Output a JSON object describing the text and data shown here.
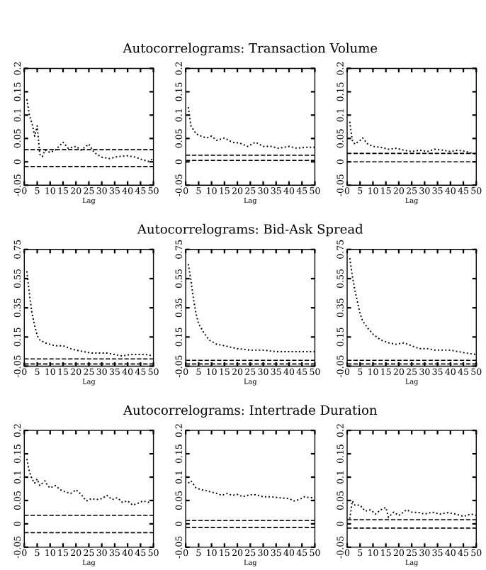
{
  "chart_data": [
    {
      "type": "line",
      "xlabel": "Lag",
      "xlim": [
        0,
        50
      ],
      "xticks": [
        0,
        5,
        10,
        15,
        20,
        25,
        30,
        35,
        40,
        45,
        50
      ],
      "ylim": [
        -0.05,
        0.2
      ],
      "yticks": [
        -0.05,
        0,
        0.05,
        0.1,
        0.15,
        0.2
      ],
      "line_style": "dotted",
      "grid": false,
      "series": [
        {
          "color": "#000000",
          "x": [
            1,
            2,
            3,
            4,
            5,
            6,
            7,
            8,
            10,
            12,
            15,
            17,
            20,
            22,
            25,
            27,
            30,
            33,
            36,
            40,
            43,
            46,
            48,
            50
          ],
          "values": [
            0.134,
            0.099,
            0.082,
            0.055,
            0.077,
            0.016,
            0.011,
            0.025,
            0.02,
            0.025,
            0.042,
            0.029,
            0.033,
            0.025,
            0.038,
            0.02,
            0.01,
            0.007,
            0.011,
            0.013,
            0.01,
            0.004,
            0.001,
            0.007
          ]
        }
      ],
      "ref_lines": [
        {
          "axis": "y",
          "value": 0.026,
          "line_style": "dashed",
          "color": "#000000"
        },
        {
          "axis": "y",
          "value": -0.01,
          "line_style": "dashed",
          "color": "#000000"
        }
      ]
    },
    {
      "type": "line",
      "title": "Autocorrelograms: Transaction Volume",
      "xlabel": "Lag",
      "xlim": [
        0,
        50
      ],
      "xticks": [
        0,
        5,
        10,
        15,
        20,
        25,
        30,
        35,
        40,
        45,
        50
      ],
      "ylim": [
        -0.05,
        0.2
      ],
      "yticks": [
        -0.05,
        0,
        0.05,
        0.1,
        0.15,
        0.2
      ],
      "line_style": "dotted",
      "grid": false,
      "legend": false,
      "series": [
        {
          "color": "#000000",
          "x": [
            1,
            2,
            4,
            6,
            8,
            10,
            12,
            15,
            18,
            21,
            24,
            27,
            30,
            33,
            36,
            40,
            43,
            46,
            50
          ],
          "values": [
            0.117,
            0.077,
            0.06,
            0.055,
            0.051,
            0.055,
            0.046,
            0.051,
            0.042,
            0.04,
            0.033,
            0.042,
            0.033,
            0.033,
            0.029,
            0.033,
            0.029,
            0.031,
            0.031
          ]
        }
      ],
      "ref_lines": [
        {
          "axis": "y",
          "value": 0.014,
          "line_style": "dashed",
          "color": "#000000"
        },
        {
          "axis": "y",
          "value": 0.003,
          "line_style": "dashed",
          "color": "#000000"
        }
      ]
    },
    {
      "type": "line",
      "xlabel": "Lag",
      "xlim": [
        0,
        50
      ],
      "xticks": [
        0,
        5,
        10,
        15,
        20,
        25,
        30,
        35,
        40,
        45,
        50
      ],
      "ylim": [
        -0.05,
        0.2
      ],
      "yticks": [
        -0.05,
        0,
        0.05,
        0.1,
        0.15,
        0.2
      ],
      "line_style": "dotted",
      "grid": false,
      "legend": false,
      "series": [
        {
          "color": "#000000",
          "x": [
            1,
            2,
            3,
            5,
            6,
            8,
            10,
            13,
            16,
            19,
            22,
            25,
            28,
            31,
            34,
            37,
            40,
            43,
            46,
            50
          ],
          "values": [
            0.086,
            0.046,
            0.038,
            0.046,
            0.051,
            0.038,
            0.033,
            0.031,
            0.027,
            0.029,
            0.025,
            0.022,
            0.025,
            0.022,
            0.027,
            0.025,
            0.022,
            0.025,
            0.022,
            0.016
          ]
        }
      ],
      "ref_lines": [
        {
          "axis": "y",
          "value": 0.018,
          "line_style": "dashed",
          "color": "#000000"
        },
        {
          "axis": "y",
          "value": 0.0,
          "line_style": "dashed",
          "color": "#000000"
        }
      ]
    },
    {
      "type": "line",
      "xlabel": "Lag",
      "xlim": [
        0,
        50
      ],
      "xticks": [
        0,
        5,
        10,
        15,
        20,
        25,
        30,
        35,
        40,
        45,
        50
      ],
      "ylim": [
        -0.05,
        0.75
      ],
      "yticks": [
        -0.05,
        0.15,
        0.35,
        0.55,
        0.75
      ],
      "line_style": "dotted",
      "grid": false,
      "legend": false,
      "series": [
        {
          "color": "#000000",
          "x": [
            1,
            2,
            3,
            4,
            5,
            6,
            8,
            10,
            12,
            15,
            18,
            20,
            23,
            26,
            29,
            32,
            35,
            38,
            41,
            44,
            47,
            50
          ],
          "values": [
            0.6,
            0.44,
            0.31,
            0.23,
            0.16,
            0.13,
            0.11,
            0.1,
            0.09,
            0.09,
            0.07,
            0.06,
            0.05,
            0.04,
            0.04,
            0.04,
            0.03,
            0.02,
            0.03,
            0.03,
            0.03,
            0.02
          ]
        }
      ],
      "ref_lines": [
        {
          "axis": "y",
          "value": 0.0,
          "line_style": "dashed",
          "color": "#000000"
        },
        {
          "axis": "y",
          "value": -0.035,
          "line_style": "dashed",
          "color": "#000000"
        }
      ]
    },
    {
      "type": "line",
      "title": "Autocorrelograms: Bid-Ask Spread",
      "xlabel": "Lag",
      "xlim": [
        0,
        50
      ],
      "xticks": [
        0,
        5,
        10,
        15,
        20,
        25,
        30,
        35,
        40,
        45,
        50
      ],
      "ylim": [
        -0.05,
        0.75
      ],
      "yticks": [
        -0.05,
        0.15,
        0.35,
        0.55,
        0.75
      ],
      "line_style": "dotted",
      "grid": false,
      "legend": false,
      "series": [
        {
          "color": "#000000",
          "x": [
            1,
            2,
            3,
            4,
            5,
            7,
            9,
            12,
            15,
            20,
            25,
            30,
            35,
            40,
            45,
            50
          ],
          "values": [
            0.65,
            0.54,
            0.41,
            0.31,
            0.24,
            0.18,
            0.13,
            0.1,
            0.09,
            0.07,
            0.06,
            0.06,
            0.05,
            0.05,
            0.05,
            0.05
          ]
        }
      ],
      "ref_lines": [
        {
          "axis": "y",
          "value": -0.01,
          "line_style": "dashed",
          "color": "#000000"
        },
        {
          "axis": "y",
          "value": -0.035,
          "line_style": "dashed",
          "color": "#000000"
        }
      ]
    },
    {
      "type": "line",
      "xlabel": "Lag",
      "xlim": [
        0,
        50
      ],
      "xticks": [
        0,
        5,
        10,
        15,
        20,
        25,
        30,
        35,
        40,
        45,
        50
      ],
      "ylim": [
        -0.05,
        0.75
      ],
      "yticks": [
        -0.05,
        0.15,
        0.35,
        0.55,
        0.75
      ],
      "line_style": "dotted",
      "grid": false,
      "legend": false,
      "series": [
        {
          "color": "#000000",
          "x": [
            1,
            2,
            3,
            4,
            5,
            6,
            8,
            10,
            13,
            16,
            19,
            22,
            25,
            28,
            31,
            34,
            37,
            40,
            43,
            46,
            50
          ],
          "values": [
            0.69,
            0.57,
            0.47,
            0.39,
            0.31,
            0.26,
            0.21,
            0.17,
            0.13,
            0.11,
            0.1,
            0.11,
            0.09,
            0.07,
            0.07,
            0.06,
            0.06,
            0.06,
            0.05,
            0.04,
            0.03
          ]
        }
      ],
      "ref_lines": [
        {
          "axis": "y",
          "value": -0.01,
          "line_style": "dashed",
          "color": "#000000"
        },
        {
          "axis": "y",
          "value": -0.035,
          "line_style": "dashed",
          "color": "#000000"
        }
      ]
    },
    {
      "type": "line",
      "xlabel": "Lag",
      "xlim": [
        0,
        50
      ],
      "xticks": [
        0,
        5,
        10,
        15,
        20,
        25,
        30,
        35,
        40,
        45,
        50
      ],
      "ylim": [
        -0.05,
        0.2
      ],
      "yticks": [
        -0.05,
        0,
        0.05,
        0.1,
        0.15,
        0.2
      ],
      "line_style": "dotted",
      "grid": false,
      "legend": false,
      "series": [
        {
          "color": "#000000",
          "x": [
            1,
            2,
            3,
            4,
            5,
            6,
            7,
            8,
            9,
            10,
            12,
            14,
            16,
            18,
            20,
            22,
            24,
            26,
            28,
            30,
            32,
            34,
            36,
            38,
            40,
            42,
            44,
            46,
            48,
            50
          ],
          "values": [
            0.139,
            0.111,
            0.096,
            0.087,
            0.096,
            0.082,
            0.087,
            0.092,
            0.082,
            0.077,
            0.082,
            0.073,
            0.068,
            0.065,
            0.073,
            0.063,
            0.049,
            0.054,
            0.052,
            0.054,
            0.061,
            0.052,
            0.056,
            0.046,
            0.049,
            0.04,
            0.044,
            0.049,
            0.046,
            0.052
          ]
        }
      ],
      "ref_lines": [
        {
          "axis": "y",
          "value": 0.018,
          "line_style": "dashed",
          "color": "#000000"
        },
        {
          "axis": "y",
          "value": -0.019,
          "line_style": "dashed",
          "color": "#000000"
        }
      ]
    },
    {
      "type": "line",
      "title": "Autocorrelograms: Intertrade Duration",
      "xlabel": "Lag",
      "xlim": [
        0,
        50
      ],
      "xticks": [
        0,
        5,
        10,
        15,
        20,
        25,
        30,
        35,
        40,
        45,
        50
      ],
      "ylim": [
        -0.05,
        0.2
      ],
      "yticks": [
        -0.05,
        0,
        0.05,
        0.1,
        0.15,
        0.2
      ],
      "line_style": "dotted",
      "grid": false,
      "legend": false,
      "series": [
        {
          "color": "#000000",
          "x": [
            1,
            2,
            4,
            6,
            8,
            10,
            12,
            14,
            16,
            18,
            20,
            22,
            24,
            26,
            28,
            30,
            33,
            36,
            40,
            42,
            44,
            46,
            48,
            50
          ],
          "values": [
            0.087,
            0.092,
            0.077,
            0.073,
            0.071,
            0.068,
            0.065,
            0.061,
            0.065,
            0.061,
            0.063,
            0.058,
            0.061,
            0.063,
            0.061,
            0.058,
            0.058,
            0.056,
            0.054,
            0.049,
            0.052,
            0.058,
            0.056,
            0.056
          ]
        }
      ],
      "ref_lines": [
        {
          "axis": "y",
          "value": 0.007,
          "line_style": "dashed",
          "color": "#000000"
        },
        {
          "axis": "y",
          "value": -0.008,
          "line_style": "dashed",
          "color": "#000000"
        }
      ]
    },
    {
      "type": "line",
      "xlabel": "Lag",
      "xlim": [
        0,
        50
      ],
      "xticks": [
        0,
        5,
        10,
        15,
        20,
        25,
        30,
        35,
        40,
        45,
        50
      ],
      "ylim": [
        -0.05,
        0.2
      ],
      "yticks": [
        -0.05,
        0,
        0.05,
        0.1,
        0.15,
        0.2
      ],
      "line_style": "dotted",
      "grid": false,
      "legend": false,
      "series": [
        {
          "color": "#000000",
          "x": [
            1,
            2,
            3,
            5,
            7,
            9,
            11,
            13,
            15,
            16,
            18,
            20,
            23,
            25,
            28,
            30,
            33,
            36,
            39,
            42,
            45,
            48,
            50
          ],
          "values": [
            0.011,
            0.049,
            0.04,
            0.04,
            0.027,
            0.03,
            0.021,
            0.03,
            0.035,
            0.014,
            0.025,
            0.018,
            0.03,
            0.025,
            0.024,
            0.021,
            0.025,
            0.021,
            0.024,
            0.021,
            0.016,
            0.021,
            0.018
          ]
        }
      ],
      "ref_lines": [
        {
          "axis": "y",
          "value": 0.009,
          "line_style": "dashed",
          "color": "#000000"
        },
        {
          "axis": "y",
          "value": -0.009,
          "line_style": "dashed",
          "color": "#000000"
        }
      ]
    }
  ]
}
